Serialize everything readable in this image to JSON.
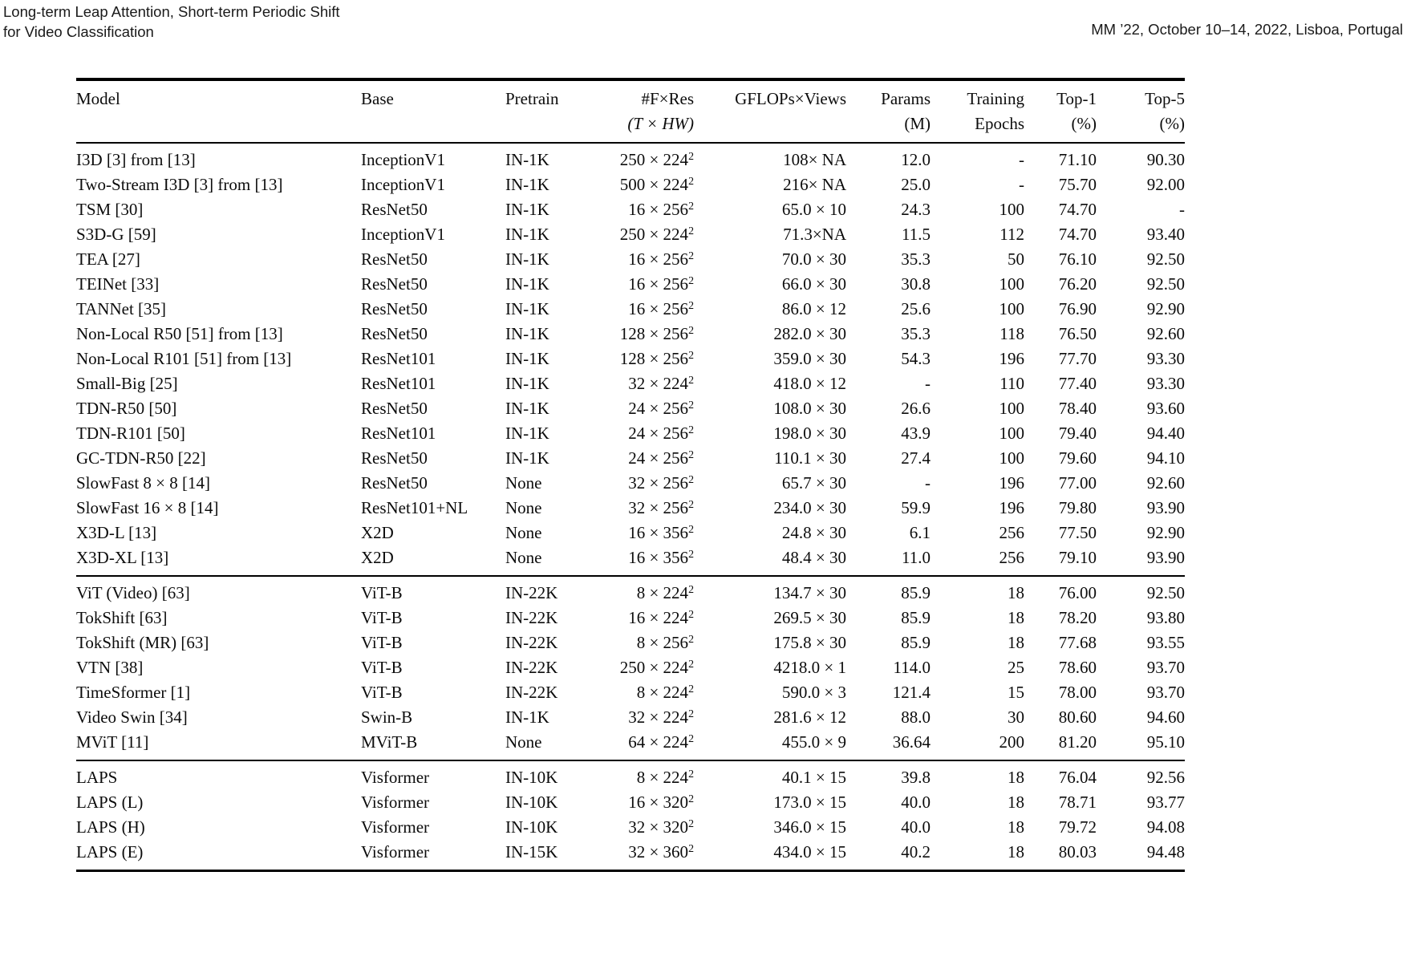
{
  "page_header": {
    "title_line1": "Long-term Leap Attention, Short-term Periodic Shift",
    "title_line2": "for Video Classification",
    "venue": "MM ’22, October 10–14, 2022, Lisboa, Portugal"
  },
  "table": {
    "headers": {
      "model": "Model",
      "base": "Base",
      "pretrain": "Pretrain",
      "fres_line1": "#F×Res",
      "fres_line2": "(T × HW)",
      "gflops": "GFLOPs×Views",
      "params_line1": "Params",
      "params_line2": "(M)",
      "epochs_line1": "Training",
      "epochs_line2": "Epochs",
      "top1_line1": "Top-1",
      "top1_line2": "(%)",
      "top5_line1": "Top-5",
      "top5_line2": "(%)"
    },
    "groups": [
      {
        "rows": [
          {
            "model": "I3D [3] from [13]",
            "base": "InceptionV1",
            "pretrain": "IN-1K",
            "fres": "250 × 224",
            "fres_sup": "2",
            "gflops": "108× NA",
            "params": "12.0",
            "epochs": "-",
            "top1": "71.10",
            "top5": "90.30"
          },
          {
            "model": "Two-Stream I3D [3] from [13]",
            "base": "InceptionV1",
            "pretrain": "IN-1K",
            "fres": "500 × 224",
            "fres_sup": "2",
            "gflops": "216× NA",
            "params": "25.0",
            "epochs": "-",
            "top1": "75.70",
            "top5": "92.00"
          },
          {
            "model": "TSM [30]",
            "base": "ResNet50",
            "pretrain": "IN-1K",
            "fres": "16 × 256",
            "fres_sup": "2",
            "gflops": "65.0 × 10",
            "params": "24.3",
            "epochs": "100",
            "top1": "74.70",
            "top5": "-"
          },
          {
            "model": "S3D-G [59]",
            "base": "InceptionV1",
            "pretrain": "IN-1K",
            "fres": "250 × 224",
            "fres_sup": "2",
            "gflops": "71.3×NA",
            "params": "11.5",
            "epochs": "112",
            "top1": "74.70",
            "top5": "93.40"
          },
          {
            "model": "TEA [27]",
            "base": "ResNet50",
            "pretrain": "IN-1K",
            "fres": "16 × 256",
            "fres_sup": "2",
            "gflops": "70.0 × 30",
            "params": "35.3",
            "epochs": "50",
            "top1": "76.10",
            "top5": "92.50"
          },
          {
            "model": "TEINet [33]",
            "base": "ResNet50",
            "pretrain": "IN-1K",
            "fres": "16 × 256",
            "fres_sup": "2",
            "gflops": "66.0 × 30",
            "params": "30.8",
            "epochs": "100",
            "top1": "76.20",
            "top5": "92.50"
          },
          {
            "model": "TANNet [35]",
            "base": "ResNet50",
            "pretrain": "IN-1K",
            "fres": "16 × 256",
            "fres_sup": "2",
            "gflops": "86.0 × 12",
            "params": "25.6",
            "epochs": "100",
            "top1": "76.90",
            "top5": "92.90"
          },
          {
            "model": "Non-Local R50 [51] from [13]",
            "base": "ResNet50",
            "pretrain": "IN-1K",
            "fres": "128 × 256",
            "fres_sup": "2",
            "gflops": "282.0 × 30",
            "params": "35.3",
            "epochs": "118",
            "top1": "76.50",
            "top5": "92.60"
          },
          {
            "model": "Non-Local R101 [51] from [13]",
            "base": "ResNet101",
            "pretrain": "IN-1K",
            "fres": "128 × 256",
            "fres_sup": "2",
            "gflops": "359.0 × 30",
            "params": "54.3",
            "epochs": "196",
            "top1": "77.70",
            "top5": "93.30"
          },
          {
            "model": "Small-Big [25]",
            "base": "ResNet101",
            "pretrain": "IN-1K",
            "fres": "32 × 224",
            "fres_sup": "2",
            "gflops": "418.0 × 12",
            "params": "-",
            "epochs": "110",
            "top1": "77.40",
            "top5": "93.30"
          },
          {
            "model": "TDN-R50 [50]",
            "base": "ResNet50",
            "pretrain": "IN-1K",
            "fres": "24 × 256",
            "fres_sup": "2",
            "gflops": "108.0 × 30",
            "params": "26.6",
            "epochs": "100",
            "top1": "78.40",
            "top5": "93.60"
          },
          {
            "model": "TDN-R101 [50]",
            "base": "ResNet101",
            "pretrain": "IN-1K",
            "fres": "24 × 256",
            "fres_sup": "2",
            "gflops": "198.0 × 30",
            "params": "43.9",
            "epochs": "100",
            "top1": "79.40",
            "top5": "94.40"
          },
          {
            "model": "GC-TDN-R50 [22]",
            "base": "ResNet50",
            "pretrain": "IN-1K",
            "fres": "24 × 256",
            "fres_sup": "2",
            "gflops": "110.1 × 30",
            "params": "27.4",
            "epochs": "100",
            "top1": "79.60",
            "top5": "94.10"
          },
          {
            "model": "SlowFast 8 × 8 [14]",
            "base": "ResNet50",
            "pretrain": "None",
            "fres": "32 × 256",
            "fres_sup": "2",
            "gflops": "65.7 × 30",
            "params": "-",
            "epochs": "196",
            "top1": "77.00",
            "top5": "92.60"
          },
          {
            "model": "SlowFast 16 × 8 [14]",
            "base": "ResNet101+NL",
            "pretrain": "None",
            "fres": "32 × 256",
            "fres_sup": "2",
            "gflops": "234.0 × 30",
            "params": "59.9",
            "epochs": "196",
            "top1": "79.80",
            "top5": "93.90"
          },
          {
            "model": "X3D-L [13]",
            "base": "X2D",
            "pretrain": "None",
            "fres": "16 × 356",
            "fres_sup": "2",
            "gflops": "24.8 × 30",
            "params": "6.1",
            "epochs": "256",
            "top1": "77.50",
            "top5": "92.90"
          },
          {
            "model": "X3D-XL [13]",
            "base": "X2D",
            "pretrain": "None",
            "fres": "16 × 356",
            "fres_sup": "2",
            "gflops": "48.4 × 30",
            "params": "11.0",
            "epochs": "256",
            "top1": "79.10",
            "top5": "93.90"
          }
        ]
      },
      {
        "rows": [
          {
            "model": "ViT (Video) [63]",
            "base": "ViT-B",
            "pretrain": "IN-22K",
            "fres": "8 × 224",
            "fres_sup": "2",
            "gflops": "134.7 × 30",
            "params": "85.9",
            "epochs": "18",
            "top1": "76.00",
            "top5": "92.50"
          },
          {
            "model": "TokShift [63]",
            "base": "ViT-B",
            "pretrain": "IN-22K",
            "fres": "16 × 224",
            "fres_sup": "2",
            "gflops": "269.5 × 30",
            "params": "85.9",
            "epochs": "18",
            "top1": "78.20",
            "top5": "93.80"
          },
          {
            "model": "TokShift (MR) [63]",
            "base": "ViT-B",
            "pretrain": "IN-22K",
            "fres": "8 × 256",
            "fres_sup": "2",
            "gflops": "175.8 × 30",
            "params": "85.9",
            "epochs": "18",
            "top1": "77.68",
            "top5": "93.55"
          },
          {
            "model": "VTN [38]",
            "base": "ViT-B",
            "pretrain": "IN-22K",
            "fres": "250 × 224",
            "fres_sup": "2",
            "gflops": "4218.0 × 1",
            "params": "114.0",
            "epochs": "25",
            "top1": "78.60",
            "top5": "93.70"
          },
          {
            "model": "TimeSformer [1]",
            "base": "ViT-B",
            "pretrain": "IN-22K",
            "fres": "8 × 224",
            "fres_sup": "2",
            "gflops": "590.0 × 3",
            "params": "121.4",
            "epochs": "15",
            "top1": "78.00",
            "top5": "93.70"
          },
          {
            "model": "Video Swin [34]",
            "base": "Swin-B",
            "pretrain": "IN-1K",
            "fres": "32 × 224",
            "fres_sup": "2",
            "gflops": "281.6 × 12",
            "params": "88.0",
            "epochs": "30",
            "top1": "80.60",
            "top5": "94.60"
          },
          {
            "model": "MViT [11]",
            "base": "MViT-B",
            "pretrain": "None",
            "fres": "64 × 224",
            "fres_sup": "2",
            "gflops": "455.0 × 9",
            "params": "36.64",
            "epochs": "200",
            "top1": "81.20",
            "top5": "95.10"
          }
        ]
      },
      {
        "rows": [
          {
            "model": "LAPS",
            "base": "Visformer",
            "pretrain": "IN-10K",
            "fres": "8 × 224",
            "fres_sup": "2",
            "gflops": "40.1 × 15",
            "params": "39.8",
            "epochs": "18",
            "top1": "76.04",
            "top5": "92.56"
          },
          {
            "model": "LAPS (L)",
            "base": "Visformer",
            "pretrain": "IN-10K",
            "fres": "16 × 320",
            "fres_sup": "2",
            "gflops": "173.0 × 15",
            "params": "40.0",
            "epochs": "18",
            "top1": "78.71",
            "top5": "93.77"
          },
          {
            "model": "LAPS (H)",
            "base": "Visformer",
            "pretrain": "IN-10K",
            "fres": "32 × 320",
            "fres_sup": "2",
            "gflops": "346.0 × 15",
            "params": "40.0",
            "epochs": "18",
            "top1": "79.72",
            "top5": "94.08"
          },
          {
            "model": "LAPS (E)",
            "base": "Visformer",
            "pretrain": "IN-15K",
            "fres": "32 × 360",
            "fres_sup": "2",
            "gflops": "434.0 × 15",
            "params": "40.2",
            "epochs": "18",
            "top1": "80.03",
            "top5": "94.48"
          }
        ]
      }
    ]
  }
}
